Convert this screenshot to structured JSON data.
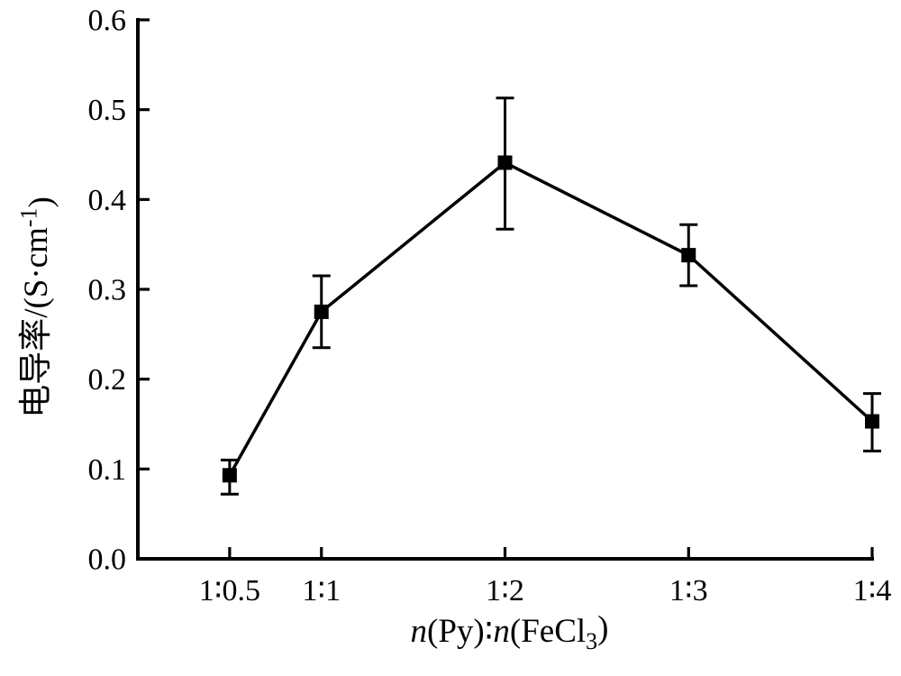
{
  "page": {
    "background": "#ffffff",
    "foreground": "#000000"
  },
  "chart_data": {
    "type": "line",
    "title": "",
    "xlabel": "n(Py)∶n(FeCl₃)",
    "ylabel": "电导率/(S·cm⁻¹)",
    "xlabel_parts": [
      {
        "text": "n",
        "style": "italic"
      },
      {
        "text": "(Py)∶",
        "style": "normal"
      },
      {
        "text": "n",
        "style": "italic"
      },
      {
        "text": "(FeCl",
        "style": "normal"
      },
      {
        "text": "3",
        "style": "sub"
      },
      {
        "text": ")",
        "style": "normal"
      }
    ],
    "ylabel_parts": [
      {
        "text": "电导率/(S·cm",
        "style": "normal"
      },
      {
        "text": "-1",
        "style": "sup"
      },
      {
        "text": ")",
        "style": "normal"
      }
    ],
    "categories": [
      "1∶0.5",
      "1∶1",
      "1∶2",
      "1∶3",
      "1∶4"
    ],
    "x": [
      0.5,
      1,
      2,
      3,
      4
    ],
    "values": [
      0.093,
      0.275,
      0.441,
      0.338,
      0.153
    ],
    "error_top": [
      0.11,
      0.315,
      0.513,
      0.372,
      0.184
    ],
    "error_bottom": [
      0.072,
      0.235,
      0.367,
      0.304,
      0.12
    ],
    "xlim": [
      0,
      4
    ],
    "ylim": [
      0,
      0.6
    ],
    "yticks": [
      0.0,
      0.1,
      0.2,
      0.3,
      0.4,
      0.5,
      0.6
    ],
    "ytick_labels": [
      "0.0",
      "0.1",
      "0.2",
      "0.3",
      "0.4",
      "0.5",
      "0.6"
    ],
    "grid": false,
    "legend": "none",
    "line_color": "#000000",
    "marker": "square",
    "marker_color": "#000000",
    "background": "#ffffff"
  }
}
